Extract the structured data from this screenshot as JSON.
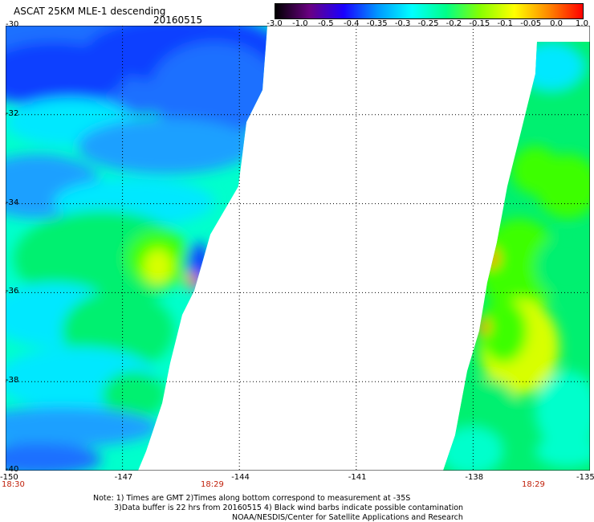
{
  "header": {
    "title": "ASCAT 25KM MLE-1 descending",
    "date": "20160515"
  },
  "colorbar": {
    "labels": [
      "-3.0",
      "-1.0",
      "-0.5",
      "-0.4",
      "-0.35",
      "-0.3",
      "-0.25",
      "-0.2",
      "-0.15",
      "-0.1",
      "-0.05",
      "0.0",
      "1.0"
    ],
    "colors": [
      "#000000",
      "#6a0082",
      "#1a00ff",
      "#0098ff",
      "#00ffff",
      "#00ff88",
      "#88ff00",
      "#ffff00",
      "#ff8800",
      "#ff0000"
    ]
  },
  "map": {
    "lon_range": [
      -150,
      -135
    ],
    "lat_range": [
      -40,
      -30
    ],
    "lon_ticks": [
      "-150",
      "-147",
      "-144",
      "-141",
      "-138",
      "-135"
    ],
    "lat_ticks": [
      "-30",
      "-32",
      "-34",
      "-36",
      "-38",
      "-40"
    ],
    "swath_colors": {
      "blue": "#0a40ff",
      "mid_blue": "#1a6fff",
      "light_blue": "#1aa0ff",
      "cyan": "#00e8ff",
      "aqua": "#00ffcc",
      "green": "#00f070",
      "lime": "#3cff00",
      "yellow": "#d8ff00",
      "orange": "#ff9900"
    }
  },
  "times": {
    "left": "18:30",
    "middle": "18:29",
    "right": "18:29"
  },
  "notes": {
    "line1": "Note: 1) Times are GMT 2)Times along bottom correspond to measurement at -35S",
    "line2": "3)Data buffer is 22 hrs from 20160515 4) Black wind barbs indicate possible contamination",
    "line3": "NOAA/NESDIS/Center for Satellite Applications and Research"
  }
}
